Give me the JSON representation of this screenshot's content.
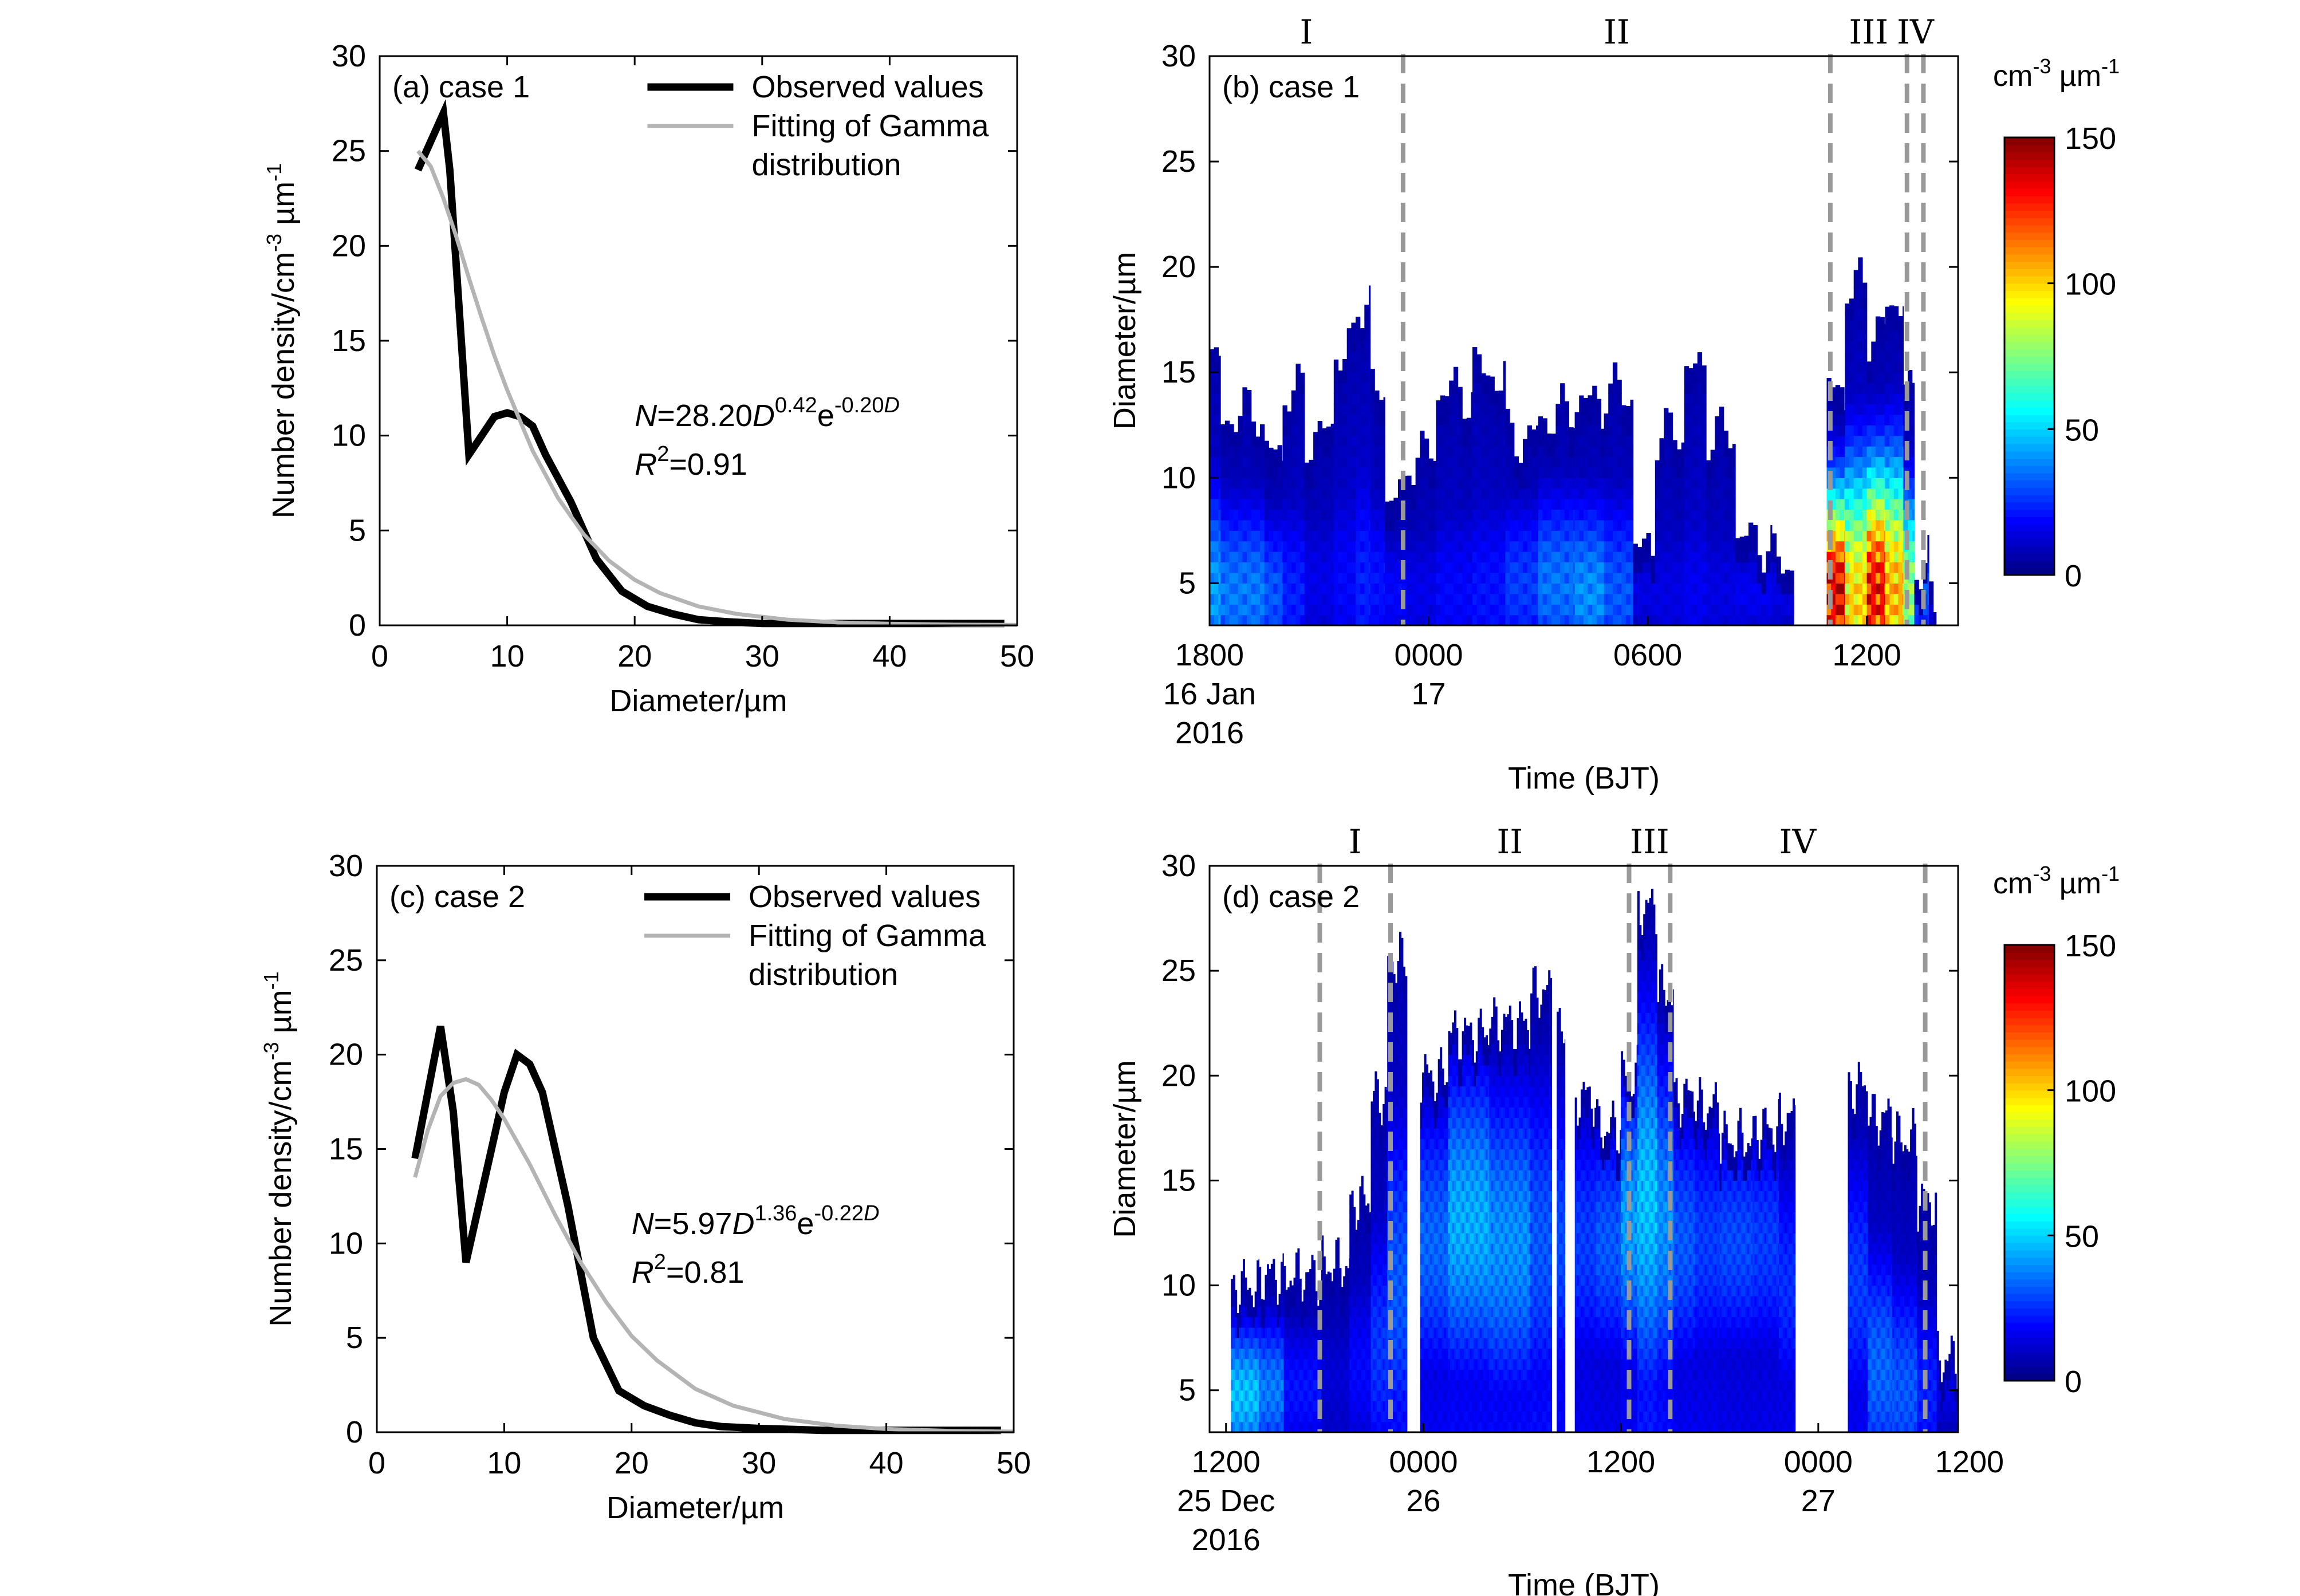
{
  "colors": {
    "observed": "#000000",
    "fit": "#b4b4b4",
    "stage_line": "#999999",
    "colormap": [
      "#00007f",
      "#0000ff",
      "#007fff",
      "#00ffff",
      "#7fff7f",
      "#ffff00",
      "#ff7f00",
      "#ff0000",
      "#7f0000"
    ]
  },
  "chart_data": [
    {
      "type": "line",
      "panel_label": "(a)  case 1",
      "xlabel": "Diameter/µm",
      "ylabel": "Number density/cm-3 µm-1",
      "ylabel_parts": {
        "base": "Number density/cm",
        "exp1": "-3",
        "mid": " µm",
        "exp2": "-1"
      },
      "xlim": [
        0,
        50
      ],
      "ylim": [
        0,
        30
      ],
      "xticks": [
        0,
        10,
        20,
        30,
        40,
        50
      ],
      "yticks": [
        0,
        5,
        10,
        15,
        20,
        25,
        30
      ],
      "legend_position": "top-right",
      "series": [
        {
          "name": "Observed values",
          "x": [
            3,
            4,
            5,
            5.5,
            6.5,
            7,
            8,
            9,
            10,
            11,
            12,
            13,
            15,
            17,
            19,
            21,
            23,
            25,
            27,
            30,
            35,
            40,
            45,
            49
          ],
          "y": [
            24,
            25.5,
            27,
            24,
            14,
            9,
            10,
            11,
            11.2,
            11,
            10.5,
            9,
            6.5,
            3.5,
            1.8,
            1.0,
            0.6,
            0.3,
            0.2,
            0.1,
            0.1,
            0.1,
            0.1,
            0.1
          ]
        },
        {
          "name": "Fitting of Gamma distribution",
          "x": [
            3,
            4,
            5,
            6,
            7,
            8,
            9,
            10,
            12,
            14,
            16,
            18,
            20,
            22,
            25,
            28,
            32,
            36,
            40,
            45,
            50
          ],
          "y": [
            25,
            24.2,
            22.5,
            20.5,
            18.3,
            16.2,
            14.2,
            12.4,
            9.2,
            6.7,
            4.8,
            3.4,
            2.4,
            1.7,
            1.0,
            0.6,
            0.3,
            0.15,
            0.08,
            0.04,
            0.02
          ]
        }
      ],
      "legend_labels": [
        "Observed values",
        "Fitting of Gamma",
        "distribution"
      ],
      "equation": {
        "n": "N",
        "eq": "=28.20",
        "d": "D",
        "exp_a": "0.42",
        "e": "e",
        "exp_b": "-0.20",
        "exp_d": "D"
      },
      "r2": {
        "r": "R",
        "sup": "2",
        "val": "=0.91"
      }
    },
    {
      "type": "heatmap",
      "panel_label": "(b)  case 1",
      "xlabel": "Time (BJT)",
      "ylabel": "Diameter/µm",
      "ylim": [
        3,
        30
      ],
      "xlim_hours": [
        0,
        20.5
      ],
      "yticks": [
        5,
        10,
        15,
        20,
        25,
        30
      ],
      "xtick_positions_hours": [
        0,
        6,
        12,
        18
      ],
      "xtick_labels": [
        [
          "1800",
          "16 Jan",
          "2016"
        ],
        [
          "0000",
          "17"
        ],
        [
          "0600"
        ],
        [
          "1200"
        ]
      ],
      "colorbar": {
        "label_parts": {
          "a": "cm",
          "e1": "-3",
          "b": " µm",
          "e2": "-1"
        },
        "min": 0,
        "max": 150,
        "ticks": [
          0,
          50,
          100,
          150
        ]
      },
      "stage_lines_hours": [
        5.3,
        17.0,
        19.1,
        19.55
      ],
      "stage_labels": [
        {
          "text": "I",
          "hour": 2.65
        },
        {
          "text": "II",
          "hour": 11.15
        },
        {
          "text": "III",
          "hour": 18.05
        },
        {
          "text": "IV",
          "hour": 19.33
        }
      ],
      "columns": [
        {
          "t0": 0.0,
          "t1": 0.3,
          "top": 15.5,
          "peak": 40,
          "peak_d": 4.5
        },
        {
          "t0": 0.3,
          "t1": 1.5,
          "top": 13.0,
          "peak": 35,
          "peak_d": 4.5
        },
        {
          "t0": 1.5,
          "t1": 2.0,
          "top": 11.0,
          "peak": 30,
          "peak_d": 4.5
        },
        {
          "t0": 2.0,
          "t1": 2.6,
          "top": 14.0,
          "peak": 22,
          "peak_d": 4.5
        },
        {
          "t0": 2.6,
          "t1": 3.4,
          "top": 12.0,
          "peak": 15,
          "peak_d": 5.0
        },
        {
          "t0": 3.4,
          "t1": 4.0,
          "top": 16.0,
          "peak": 18,
          "peak_d": 5.0
        },
        {
          "t0": 4.0,
          "t1": 4.4,
          "top": 18.5,
          "peak": 22,
          "peak_d": 5.0
        },
        {
          "t0": 4.4,
          "t1": 4.8,
          "top": 14.0,
          "peak": 20,
          "peak_d": 5.0
        },
        {
          "t0": 4.8,
          "t1": 5.4,
          "top": 9.0,
          "peak": 18,
          "peak_d": 4.5
        },
        {
          "t0": 5.4,
          "t1": 6.2,
          "top": 11.0,
          "peak": 15,
          "peak_d": 4.5
        },
        {
          "t0": 6.2,
          "t1": 7.2,
          "top": 14.0,
          "peak": 18,
          "peak_d": 4.5
        },
        {
          "t0": 7.2,
          "t1": 8.1,
          "top": 15.0,
          "peak": 20,
          "peak_d": 4.5
        },
        {
          "t0": 8.1,
          "t1": 9.0,
          "top": 12.0,
          "peak": 26,
          "peak_d": 5.0
        },
        {
          "t0": 9.0,
          "t1": 10.0,
          "top": 13.0,
          "peak": 34,
          "peak_d": 5.0
        },
        {
          "t0": 10.0,
          "t1": 10.8,
          "top": 13.5,
          "peak": 38,
          "peak_d": 4.5
        },
        {
          "t0": 10.8,
          "t1": 11.6,
          "top": 14.0,
          "peak": 30,
          "peak_d": 4.5
        },
        {
          "t0": 11.6,
          "t1": 12.2,
          "top": 6.5,
          "peak": 14,
          "peak_d": 4.5
        },
        {
          "t0": 12.2,
          "t1": 13.0,
          "top": 12.0,
          "peak": 14,
          "peak_d": 4.5
        },
        {
          "t0": 13.0,
          "t1": 13.6,
          "top": 15.0,
          "peak": 16,
          "peak_d": 4.5
        },
        {
          "t0": 13.6,
          "t1": 14.4,
          "top": 12.0,
          "peak": 14,
          "peak_d": 4.5
        },
        {
          "t0": 14.4,
          "t1": 15.4,
          "top": 7.0,
          "peak": 16,
          "peak_d": 4.5
        },
        {
          "t0": 15.4,
          "t1": 16.0,
          "top": 6.0,
          "peak": 14,
          "peak_d": 4.5
        },
        {
          "t0": 16.9,
          "t1": 17.4,
          "top": 14.0,
          "peak": 130,
          "peak_d": 4.5
        },
        {
          "t0": 17.4,
          "t1": 18.0,
          "top": 19.0,
          "peak": 95,
          "peak_d": 4.0
        },
        {
          "t0": 18.0,
          "t1": 18.5,
          "top": 17.0,
          "peak": 125,
          "peak_d": 4.5
        },
        {
          "t0": 18.5,
          "t1": 19.0,
          "top": 18.5,
          "peak": 100,
          "peak_d": 4.5
        },
        {
          "t0": 19.0,
          "t1": 19.3,
          "top": 14.0,
          "peak": 75,
          "peak_d": 4.5
        },
        {
          "t0": 19.3,
          "t1": 19.7,
          "top": 6.0,
          "peak": 30,
          "peak_d": 4.5
        },
        {
          "t0": 19.7,
          "t1": 19.9,
          "top": 3.8,
          "peak": 12,
          "peak_d": 3.5
        }
      ]
    },
    {
      "type": "line",
      "panel_label": "(c)  case 2",
      "xlabel": "Diameter/µm",
      "ylabel": "Number density/cm-3 µm-1",
      "ylabel_parts": {
        "base": "Number density/cm",
        "exp1": "-3",
        "mid": " µm",
        "exp2": "-1"
      },
      "xlim": [
        0,
        50
      ],
      "ylim": [
        0,
        30
      ],
      "xticks": [
        0,
        10,
        20,
        30,
        40,
        50
      ],
      "yticks": [
        0,
        5,
        10,
        15,
        20,
        25,
        30
      ],
      "legend_position": "top-right",
      "series": [
        {
          "name": "Observed values",
          "x": [
            3,
            4,
            5,
            6,
            7,
            8,
            9,
            10,
            11,
            12,
            13,
            15,
            17,
            19,
            21,
            23,
            25,
            27,
            30,
            35,
            40,
            45,
            49
          ],
          "y": [
            14.5,
            18,
            21.5,
            17,
            9,
            12,
            15,
            18,
            20,
            19.5,
            18,
            12,
            5,
            2.2,
            1.4,
            0.9,
            0.5,
            0.3,
            0.2,
            0.1,
            0.1,
            0.1,
            0.1
          ]
        },
        {
          "name": "Fitting of Gamma distribution",
          "x": [
            3,
            4,
            5,
            6,
            7,
            8,
            9,
            10,
            12,
            14,
            16,
            18,
            20,
            22,
            25,
            28,
            32,
            36,
            40,
            45,
            50
          ],
          "y": [
            13.5,
            16.0,
            17.8,
            18.5,
            18.7,
            18.4,
            17.6,
            16.6,
            14.2,
            11.5,
            9.0,
            6.9,
            5.1,
            3.8,
            2.3,
            1.4,
            0.7,
            0.35,
            0.17,
            0.07,
            0.03
          ]
        }
      ],
      "legend_labels": [
        "Observed values",
        "Fitting of Gamma",
        "distribution"
      ],
      "equation": {
        "n": "N",
        "eq": "=5.97",
        "d": "D",
        "exp_a": "1.36",
        "e": "e",
        "exp_b": "-0.22",
        "exp_d": "D"
      },
      "r2": {
        "r": "R",
        "sup": "2",
        "val": "=0.81"
      }
    },
    {
      "type": "heatmap",
      "panel_label": "(d)  case 2",
      "xlabel": "Time (BJT)",
      "ylabel": "Diameter/µm",
      "ylim": [
        3,
        30
      ],
      "xlim_hours": [
        -1,
        44.5
      ],
      "yticks": [
        5,
        10,
        15,
        20,
        25,
        30
      ],
      "xtick_positions_hours": [
        0,
        12,
        24,
        36,
        48
      ],
      "xtick_labels": [
        [
          "1200",
          "25 Dec",
          "2016"
        ],
        [
          "0000",
          "26"
        ],
        [
          "1200"
        ],
        [
          "0000",
          "27"
        ],
        [
          "1200"
        ]
      ],
      "colorbar": {
        "label_parts": {
          "a": "cm",
          "e1": "-3",
          "b": " µm",
          "e2": "-1"
        },
        "min": 0,
        "max": 150,
        "ticks": [
          0,
          50,
          100,
          150
        ]
      },
      "stage_lines_hours": [
        5.7,
        10.0,
        24.5,
        27.0,
        42.5
      ],
      "stage_labels": [
        {
          "text": "I",
          "hour": 7.85
        },
        {
          "text": "II",
          "hour": 17.25
        },
        {
          "text": "III",
          "hour": 25.75
        },
        {
          "text": "IV",
          "hour": 34.75
        }
      ],
      "columns": [
        {
          "t0": 0.3,
          "t1": 2.0,
          "top": 10.0,
          "peak": 45,
          "peak_d": 4.8
        },
        {
          "t0": 2.0,
          "t1": 3.5,
          "top": 10.5,
          "peak": 35,
          "peak_d": 5.0
        },
        {
          "t0": 3.5,
          "t1": 5.8,
          "top": 10.5,
          "peak": 20,
          "peak_d": 5.0
        },
        {
          "t0": 5.8,
          "t1": 7.5,
          "top": 11.0,
          "peak": 12,
          "peak_d": 5.5
        },
        {
          "t0": 7.5,
          "t1": 8.8,
          "top": 14.0,
          "peak": 18,
          "peak_d": 6.0
        },
        {
          "t0": 8.8,
          "t1": 9.8,
          "top": 19.0,
          "peak": 25,
          "peak_d": 7.0
        },
        {
          "t0": 9.8,
          "t1": 11.0,
          "top": 25.5,
          "peak": 30,
          "peak_d": 10.0
        },
        {
          "t0": 11.8,
          "t1": 13.5,
          "top": 20.0,
          "peak": 32,
          "peak_d": 12.0
        },
        {
          "t0": 13.5,
          "t1": 16.0,
          "top": 22.0,
          "peak": 42,
          "peak_d": 13.0
        },
        {
          "t0": 16.0,
          "t1": 18.5,
          "top": 22.5,
          "peak": 38,
          "peak_d": 12.0
        },
        {
          "t0": 18.5,
          "t1": 19.8,
          "top": 24.0,
          "peak": 30,
          "peak_d": 12.0
        },
        {
          "t0": 20.1,
          "t1": 20.6,
          "top": 22.0,
          "peak": 28,
          "peak_d": 12.0
        },
        {
          "t0": 21.2,
          "t1": 22.5,
          "top": 19.0,
          "peak": 26,
          "peak_d": 12.0
        },
        {
          "t0": 22.5,
          "t1": 24.0,
          "top": 17.5,
          "peak": 30,
          "peak_d": 12.0
        },
        {
          "t0": 24.0,
          "t1": 25.0,
          "top": 20.0,
          "peak": 40,
          "peak_d": 13.0
        },
        {
          "t0": 25.0,
          "t1": 26.2,
          "top": 28.0,
          "peak": 45,
          "peak_d": 14.0
        },
        {
          "t0": 26.2,
          "t1": 27.2,
          "top": 24.0,
          "peak": 38,
          "peak_d": 13.0
        },
        {
          "t0": 27.2,
          "t1": 28.5,
          "top": 19.0,
          "peak": 30,
          "peak_d": 12.0
        },
        {
          "t0": 28.5,
          "t1": 30.0,
          "top": 18.5,
          "peak": 26,
          "peak_d": 12.0
        },
        {
          "t0": 30.0,
          "t1": 32.0,
          "top": 17.0,
          "peak": 28,
          "peak_d": 12.0
        },
        {
          "t0": 32.0,
          "t1": 33.6,
          "top": 17.5,
          "peak": 26,
          "peak_d": 12.0
        },
        {
          "t0": 33.6,
          "t1": 34.6,
          "top": 18.0,
          "peak": 24,
          "peak_d": 10.0
        },
        {
          "t0": 37.8,
          "t1": 39.0,
          "top": 19.5,
          "peak": 26,
          "peak_d": 10.0
        },
        {
          "t0": 39.0,
          "t1": 40.5,
          "top": 18.0,
          "peak": 32,
          "peak_d": 6.0
        },
        {
          "t0": 40.5,
          "t1": 42.0,
          "top": 17.0,
          "peak": 30,
          "peak_d": 5.0
        },
        {
          "t0": 42.0,
          "t1": 43.2,
          "top": 14.0,
          "peak": 22,
          "peak_d": 5.0
        },
        {
          "t0": 43.2,
          "t1": 44.5,
          "top": 6.5,
          "peak": 14,
          "peak_d": 5.0
        }
      ]
    }
  ]
}
